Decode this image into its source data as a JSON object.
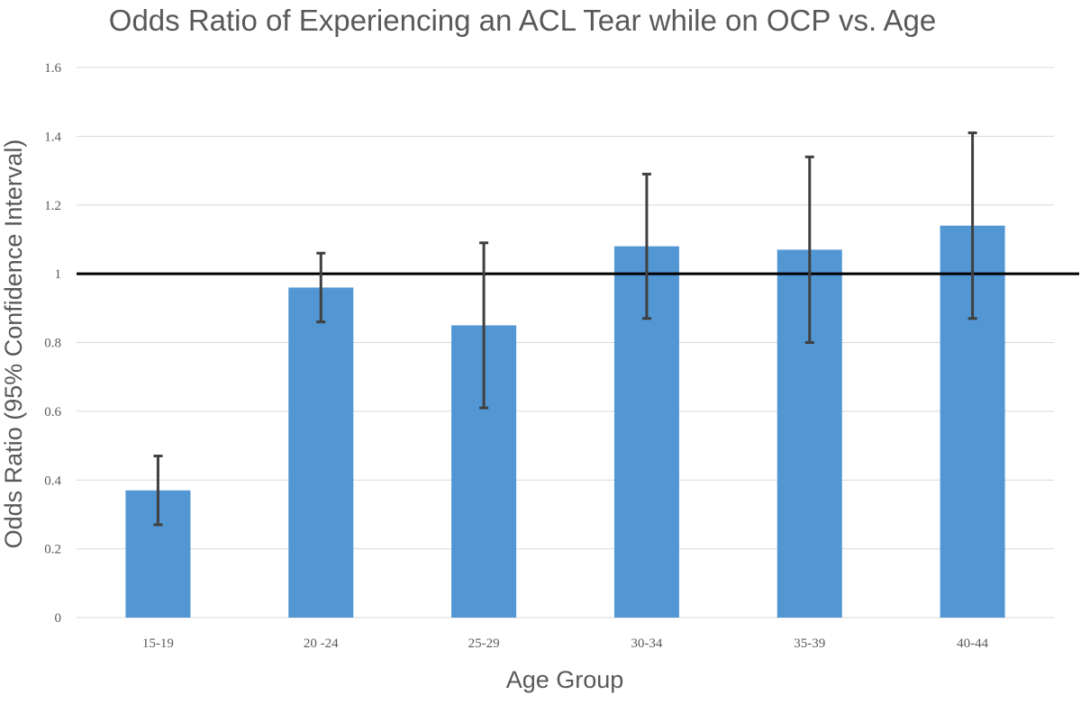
{
  "chart_data": {
    "type": "bar",
    "title": "Odds Ratio of Experiencing an ACL Tear while on OCP vs. Age",
    "xlabel": "Age Group",
    "ylabel": "Odds Ratio (95% Confidence Interval)",
    "categories": [
      "15-19",
      "20 -24",
      "25-29",
      "30-34",
      "35-39",
      "40-44"
    ],
    "values": [
      0.37,
      0.96,
      0.85,
      1.08,
      1.07,
      1.14
    ],
    "error_low": [
      0.27,
      0.86,
      0.61,
      0.87,
      0.8,
      0.87
    ],
    "error_high": [
      0.47,
      1.06,
      1.09,
      1.29,
      1.34,
      1.41
    ],
    "ylim": [
      0,
      1.6
    ],
    "yticks": [
      "0",
      "0.2",
      "0.4",
      "0.6",
      "0.8",
      "1",
      "1.2",
      "1.4",
      "1.6"
    ],
    "reference_line": 1,
    "grid": true,
    "legend": "none",
    "colors": {
      "bar": "#5296d3",
      "error_bar": "#404040",
      "reference_line": "#000000",
      "grid": "#d9d9d9",
      "text": "#595959"
    }
  }
}
